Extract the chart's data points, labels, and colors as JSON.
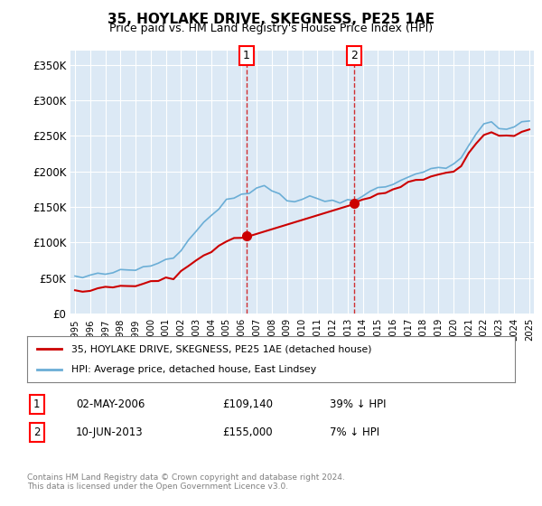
{
  "title": "35, HOYLAKE DRIVE, SKEGNESS, PE25 1AE",
  "subtitle": "Price paid vs. HM Land Registry's House Price Index (HPI)",
  "ylabel": "",
  "background_color": "#ffffff",
  "plot_bg_color": "#dce9f5",
  "grid_color": "#ffffff",
  "ylim": [
    0,
    370000
  ],
  "yticks": [
    0,
    50000,
    100000,
    150000,
    200000,
    250000,
    300000,
    350000
  ],
  "ytick_labels": [
    "£0",
    "£50K",
    "£100K",
    "£150K",
    "£200K",
    "£250K",
    "£300K",
    "£350K"
  ],
  "purchase1_date": 2006.33,
  "purchase1_price": 109140,
  "purchase1_label": "1",
  "purchase2_date": 2013.44,
  "purchase2_price": 155000,
  "purchase2_label": "2",
  "legend_house_label": "35, HOYLAKE DRIVE, SKEGNESS, PE25 1AE (detached house)",
  "legend_hpi_label": "HPI: Average price, detached house, East Lindsey",
  "table_row1": "02-MAY-2006     £109,140     39% ↓ HPI",
  "table_row2": "10-JUN-2013     £155,000     7% ↓ HPI",
  "footer": "Contains HM Land Registry data © Crown copyright and database right 2024.\nThis data is licensed under the Open Government Licence v3.0.",
  "house_color": "#cc0000",
  "hpi_color": "#6baed6",
  "dashed_line_color": "#cc0000"
}
